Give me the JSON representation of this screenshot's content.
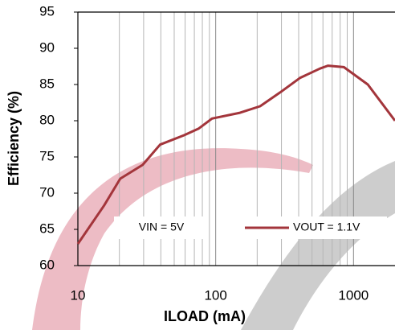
{
  "chart_data": {
    "type": "line",
    "x_label": "ILOAD (mA)",
    "y_label": "Efficiency (%)",
    "annotation": "VIN = 5V",
    "x": [
      10,
      15.5,
      20.3,
      29.5,
      39.5,
      59,
      75,
      94,
      150,
      210,
      293,
      408,
      571,
      652,
      851,
      1270,
      2000
    ],
    "series": [
      {
        "name": "VOUT = 1.1V",
        "color": "#a3353b",
        "values": [
          63,
          68.3,
          72,
          73.9,
          76.7,
          78,
          78.9,
          80.3,
          81.1,
          82,
          83.9,
          85.9,
          87.2,
          87.6,
          87.4,
          85,
          80
        ]
      }
    ],
    "xlim": [
      10,
      2000
    ],
    "xticks": [
      10,
      100,
      1000
    ],
    "xscale": "log",
    "ylim": [
      60,
      95
    ],
    "yticks": [
      60,
      65,
      70,
      75,
      80,
      85,
      90,
      95
    ],
    "grid": true
  }
}
